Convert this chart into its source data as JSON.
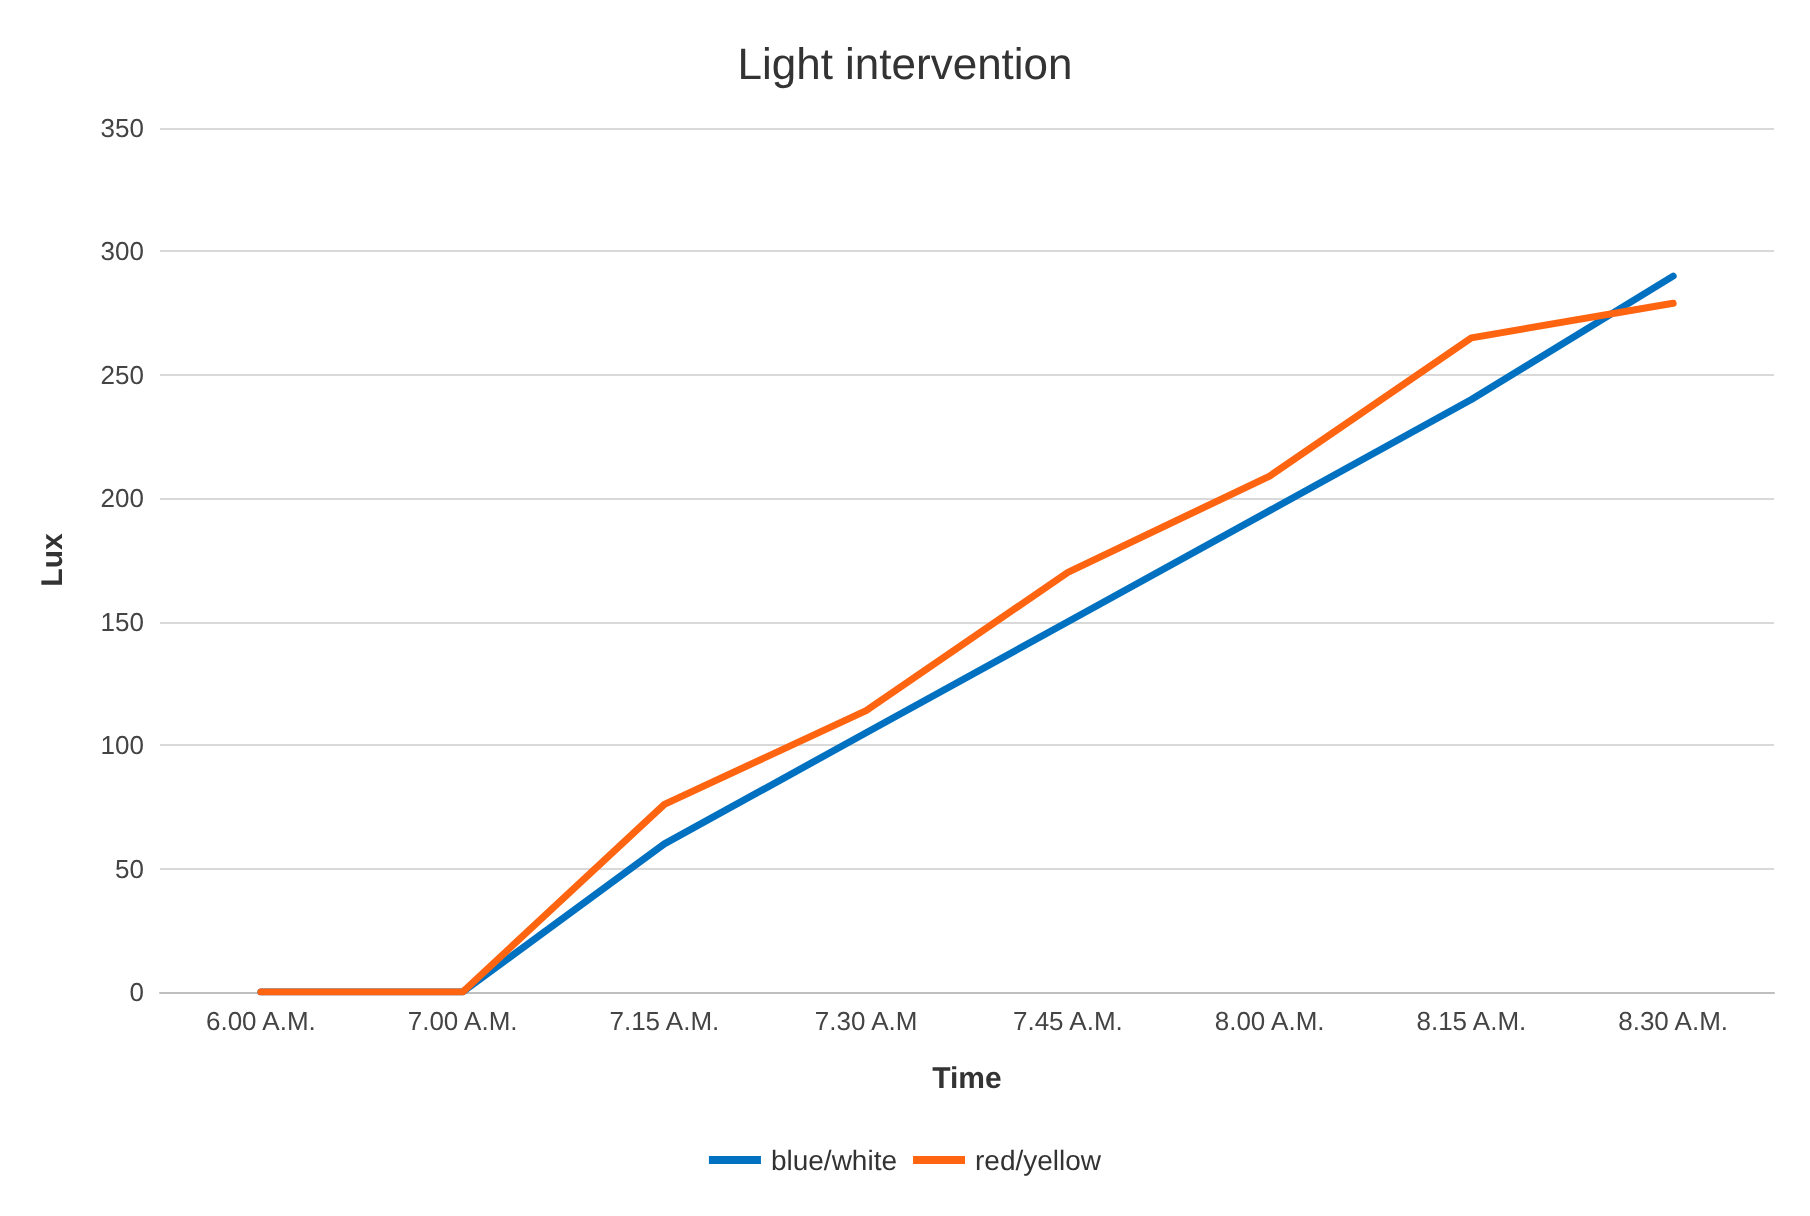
{
  "chart_data": {
    "type": "line",
    "title": "Light intervention",
    "xlabel": "Time",
    "ylabel": "Lux",
    "categories": [
      "6.00 A.M.",
      "7.00 A.M.",
      "7.15 A.M.",
      "7.30 A.M",
      "7.45 A.M.",
      "8.00 A.M.",
      "8.15 A.M.",
      "8.30 A.M."
    ],
    "series": [
      {
        "name": "blue/white",
        "color": "#0070c0",
        "values": [
          0,
          0,
          60,
          105,
          150,
          195,
          240,
          290
        ]
      },
      {
        "name": "red/yellow",
        "color": "#ff6410",
        "values": [
          0,
          0,
          76,
          114,
          170,
          209,
          265,
          279
        ]
      }
    ],
    "ylim": [
      0,
      350
    ],
    "yticks": [
      0,
      50,
      100,
      150,
      200,
      250,
      300,
      350
    ],
    "grid": "y",
    "legend": "bottom",
    "marker": "none",
    "line_style": "solid"
  }
}
